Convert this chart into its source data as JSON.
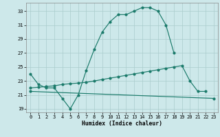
{
  "xlabel": "Humidex (Indice chaleur)",
  "bg_color": "#cde8ea",
  "line_color": "#1a7a6a",
  "grid_color": "#aacccc",
  "xlim": [
    -0.5,
    23.5
  ],
  "ylim": [
    18.5,
    34.2
  ],
  "xticks": [
    0,
    1,
    2,
    3,
    4,
    5,
    6,
    7,
    8,
    9,
    10,
    11,
    12,
    13,
    14,
    15,
    16,
    17,
    18,
    19,
    20,
    21,
    22,
    23
  ],
  "yticks": [
    19,
    21,
    23,
    25,
    27,
    29,
    31,
    33
  ],
  "curve1_x": [
    0,
    1,
    2,
    3,
    4,
    5,
    6,
    7,
    8,
    9,
    10,
    11,
    12,
    13,
    14,
    15,
    16,
    17,
    18
  ],
  "curve1_y": [
    24.0,
    22.5,
    22.0,
    22.0,
    20.5,
    19.0,
    21.0,
    24.5,
    27.5,
    30.0,
    31.5,
    32.5,
    32.5,
    33.0,
    33.5,
    33.5,
    33.0,
    31.0,
    27.0
  ],
  "curve2_x": [
    0,
    1,
    2,
    3,
    4,
    5,
    6,
    7,
    8,
    9,
    10,
    11,
    12,
    13,
    14,
    15,
    16,
    17,
    18,
    19,
    20,
    21,
    22
  ],
  "curve2_y": [
    22.0,
    22.1,
    22.2,
    22.3,
    22.5,
    22.6,
    22.7,
    22.8,
    23.0,
    23.2,
    23.4,
    23.6,
    23.8,
    24.0,
    24.2,
    24.4,
    24.6,
    24.8,
    25.0,
    25.2,
    23.0,
    21.5,
    21.5
  ],
  "curve3_x": [
    0,
    23
  ],
  "curve3_y": [
    21.5,
    20.5
  ]
}
